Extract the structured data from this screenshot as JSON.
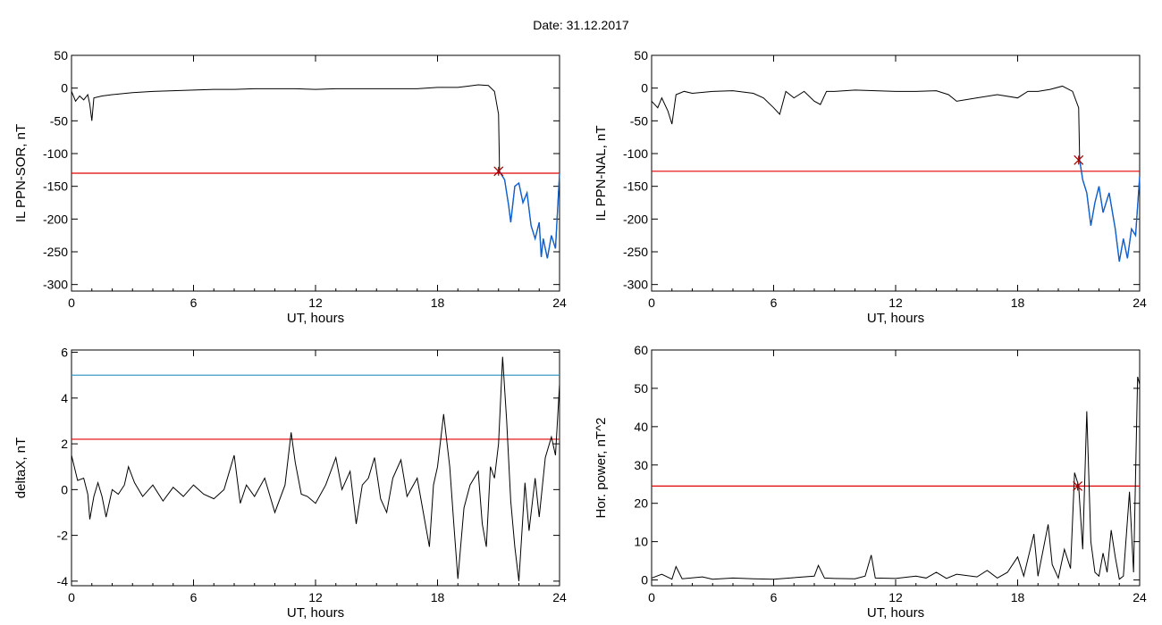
{
  "page": {
    "title": "Date:  31.12.2017"
  },
  "colors": {
    "axis": "#000000",
    "series": "#000000",
    "threshold": "#e00000",
    "highlight": "#1060d0",
    "upper_threshold": "#2a8fbf",
    "marker": "#a00000",
    "green": "#00c000"
  },
  "chart_data": [
    {
      "type": "line",
      "id": "ppn-sor",
      "xlabel": "UT, hours",
      "ylabel": "IL PPN-SOR, nT",
      "xlim": [
        0,
        24
      ],
      "ylim": [
        -310,
        50
      ],
      "xticks": [
        0,
        6,
        12,
        18,
        24
      ],
      "yticks": [
        50,
        0,
        -50,
        -100,
        -150,
        -200,
        -250,
        -300
      ],
      "threshold": -130,
      "marker": {
        "x": 21.0,
        "y": -127
      },
      "highlight_from": 21.05,
      "points": [
        [
          0,
          -5
        ],
        [
          0.2,
          -20
        ],
        [
          0.4,
          -12
        ],
        [
          0.6,
          -18
        ],
        [
          0.8,
          -10
        ],
        [
          0.9,
          -25
        ],
        [
          1.0,
          -50
        ],
        [
          1.1,
          -15
        ],
        [
          1.5,
          -12
        ],
        [
          2,
          -10
        ],
        [
          3,
          -7
        ],
        [
          4,
          -5
        ],
        [
          5,
          -4
        ],
        [
          6,
          -3
        ],
        [
          7,
          -2
        ],
        [
          8,
          -2
        ],
        [
          9,
          -1
        ],
        [
          10,
          -1
        ],
        [
          11,
          -1
        ],
        [
          12,
          -2
        ],
        [
          13,
          -1
        ],
        [
          14,
          -1
        ],
        [
          15,
          -1
        ],
        [
          16,
          -1
        ],
        [
          17,
          -1
        ],
        [
          18,
          1
        ],
        [
          19,
          1
        ],
        [
          19.5,
          3
        ],
        [
          20,
          5
        ],
        [
          20.5,
          4
        ],
        [
          20.8,
          -5
        ],
        [
          21.0,
          -40
        ],
        [
          21.05,
          -127
        ],
        [
          21.1,
          -130
        ],
        [
          21.3,
          -140
        ],
        [
          21.5,
          -180
        ],
        [
          21.6,
          -205
        ],
        [
          21.8,
          -150
        ],
        [
          22.0,
          -145
        ],
        [
          22.2,
          -175
        ],
        [
          22.4,
          -160
        ],
        [
          22.6,
          -210
        ],
        [
          22.8,
          -230
        ],
        [
          23.0,
          -205
        ],
        [
          23.1,
          -258
        ],
        [
          23.2,
          -230
        ],
        [
          23.4,
          -260
        ],
        [
          23.6,
          -225
        ],
        [
          23.8,
          -245
        ],
        [
          24.0,
          -130
        ]
      ]
    },
    {
      "type": "line",
      "id": "ppn-nal",
      "xlabel": "UT, hours",
      "ylabel": "IL PPN-NAL, nT",
      "xlim": [
        0,
        24
      ],
      "ylim": [
        -310,
        50
      ],
      "xticks": [
        0,
        6,
        12,
        18,
        24
      ],
      "yticks": [
        50,
        0,
        -50,
        -100,
        -150,
        -200,
        -250,
        -300
      ],
      "threshold": -127,
      "marker": {
        "x": 21.0,
        "y": -110
      },
      "highlight_from": 21.05,
      "points": [
        [
          0,
          -20
        ],
        [
          0.3,
          -30
        ],
        [
          0.5,
          -15
        ],
        [
          0.8,
          -35
        ],
        [
          1.0,
          -55
        ],
        [
          1.2,
          -10
        ],
        [
          1.6,
          -5
        ],
        [
          2.0,
          -8
        ],
        [
          3,
          -5
        ],
        [
          4,
          -4
        ],
        [
          5,
          -8
        ],
        [
          5.5,
          -15
        ],
        [
          6,
          -30
        ],
        [
          6.3,
          -40
        ],
        [
          6.6,
          -5
        ],
        [
          7,
          -15
        ],
        [
          7.5,
          -5
        ],
        [
          8,
          -20
        ],
        [
          8.3,
          -25
        ],
        [
          8.6,
          -5
        ],
        [
          9,
          -5
        ],
        [
          10,
          -3
        ],
        [
          11,
          -4
        ],
        [
          12,
          -5
        ],
        [
          13,
          -5
        ],
        [
          14,
          -4
        ],
        [
          14.6,
          -10
        ],
        [
          15.0,
          -20
        ],
        [
          16,
          -15
        ],
        [
          17,
          -10
        ],
        [
          18,
          -15
        ],
        [
          18.5,
          -5
        ],
        [
          19,
          -5
        ],
        [
          19.6,
          -2
        ],
        [
          20.2,
          3
        ],
        [
          20.7,
          -5
        ],
        [
          21.0,
          -30
        ],
        [
          21.05,
          -110
        ],
        [
          21.2,
          -140
        ],
        [
          21.4,
          -160
        ],
        [
          21.6,
          -210
        ],
        [
          21.8,
          -175
        ],
        [
          22.0,
          -150
        ],
        [
          22.2,
          -190
        ],
        [
          22.5,
          -160
        ],
        [
          22.8,
          -215
        ],
        [
          23.0,
          -265
        ],
        [
          23.2,
          -230
        ],
        [
          23.4,
          -260
        ],
        [
          23.6,
          -215
        ],
        [
          23.8,
          -225
        ],
        [
          24.0,
          -135
        ]
      ]
    },
    {
      "type": "line",
      "id": "deltax",
      "xlabel": "UT, hours",
      "ylabel": "deltaX, nT",
      "xlim": [
        0,
        24
      ],
      "ylim": [
        -4.2,
        6.1
      ],
      "xticks": [
        0,
        6,
        12,
        18,
        24
      ],
      "yticks": [
        6,
        4,
        2,
        0,
        -2,
        -4
      ],
      "threshold": 2.2,
      "upper_threshold": 5.0,
      "points": [
        [
          0,
          1.5
        ],
        [
          0.3,
          0.4
        ],
        [
          0.6,
          0.5
        ],
        [
          0.8,
          -0.2
        ],
        [
          0.9,
          -1.3
        ],
        [
          1.1,
          -0.3
        ],
        [
          1.3,
          0.3
        ],
        [
          1.5,
          -0.3
        ],
        [
          1.7,
          -1.2
        ],
        [
          2.0,
          0.0
        ],
        [
          2.3,
          -0.2
        ],
        [
          2.6,
          0.2
        ],
        [
          2.8,
          1.0
        ],
        [
          3.1,
          0.3
        ],
        [
          3.5,
          -0.3
        ],
        [
          4,
          0.2
        ],
        [
          4.5,
          -0.5
        ],
        [
          5,
          0.1
        ],
        [
          5.5,
          -0.3
        ],
        [
          6,
          0.2
        ],
        [
          6.5,
          -0.2
        ],
        [
          7,
          -0.4
        ],
        [
          7.5,
          0.0
        ],
        [
          8.0,
          1.5
        ],
        [
          8.3,
          -0.6
        ],
        [
          8.6,
          0.2
        ],
        [
          9,
          -0.3
        ],
        [
          9.5,
          0.5
        ],
        [
          10,
          -1.0
        ],
        [
          10.5,
          0.2
        ],
        [
          10.8,
          2.5
        ],
        [
          11,
          1.2
        ],
        [
          11.3,
          -0.2
        ],
        [
          11.6,
          -0.3
        ],
        [
          12,
          -0.6
        ],
        [
          12.5,
          0.2
        ],
        [
          13.0,
          1.4
        ],
        [
          13.3,
          0.0
        ],
        [
          13.7,
          0.8
        ],
        [
          14.0,
          -1.5
        ],
        [
          14.3,
          0.2
        ],
        [
          14.6,
          0.5
        ],
        [
          14.9,
          1.4
        ],
        [
          15.2,
          -0.4
        ],
        [
          15.5,
          -1.0
        ],
        [
          15.8,
          0.5
        ],
        [
          16.2,
          1.3
        ],
        [
          16.5,
          -0.3
        ],
        [
          17,
          0.5
        ],
        [
          17.3,
          -1.0
        ],
        [
          17.6,
          -2.5
        ],
        [
          17.8,
          0.2
        ],
        [
          18.0,
          1.0
        ],
        [
          18.3,
          3.3
        ],
        [
          18.6,
          1.0
        ],
        [
          18.8,
          -1.5
        ],
        [
          19.0,
          -3.9
        ],
        [
          19.3,
          -0.8
        ],
        [
          19.6,
          0.2
        ],
        [
          20.0,
          0.8
        ],
        [
          20.2,
          -1.5
        ],
        [
          20.4,
          -2.5
        ],
        [
          20.6,
          1.0
        ],
        [
          20.8,
          0.5
        ],
        [
          21.0,
          2.0
        ],
        [
          21.2,
          5.8
        ],
        [
          21.4,
          3.0
        ],
        [
          21.6,
          -0.5
        ],
        [
          21.8,
          -2.5
        ],
        [
          22.0,
          -4.0
        ],
        [
          22.3,
          0.3
        ],
        [
          22.5,
          -1.8
        ],
        [
          22.8,
          0.5
        ],
        [
          23.0,
          -1.2
        ],
        [
          23.3,
          1.4
        ],
        [
          23.6,
          2.3
        ],
        [
          23.8,
          1.5
        ],
        [
          24.0,
          4.6
        ]
      ]
    },
    {
      "type": "line",
      "id": "hor-power",
      "xlabel": "UT, hours",
      "ylabel": "Hor. power, nT^2",
      "xlim": [
        0,
        24
      ],
      "ylim": [
        -1.5,
        60
      ],
      "xticks": [
        0,
        6,
        12,
        18,
        24
      ],
      "yticks": [
        60,
        50,
        40,
        30,
        20,
        10,
        0
      ],
      "threshold": 24.5,
      "marker": {
        "x": 20.95,
        "y": 24.5
      },
      "points": [
        [
          0,
          0.5
        ],
        [
          0.5,
          1.5
        ],
        [
          1.0,
          0.2
        ],
        [
          1.2,
          3.5
        ],
        [
          1.5,
          0.3
        ],
        [
          2.5,
          0.8
        ],
        [
          3,
          0.2
        ],
        [
          4,
          0.5
        ],
        [
          5,
          0.3
        ],
        [
          6,
          0.2
        ],
        [
          7,
          0.6
        ],
        [
          8,
          1.0
        ],
        [
          8.2,
          3.8
        ],
        [
          8.5,
          0.5
        ],
        [
          9,
          0.4
        ],
        [
          10,
          0.3
        ],
        [
          10.5,
          1.0
        ],
        [
          10.8,
          6.5
        ],
        [
          11,
          0.5
        ],
        [
          12,
          0.4
        ],
        [
          13,
          1.0
        ],
        [
          13.5,
          0.5
        ],
        [
          14,
          2.0
        ],
        [
          14.5,
          0.4
        ],
        [
          15,
          1.5
        ],
        [
          16,
          0.8
        ],
        [
          16.5,
          2.5
        ],
        [
          17,
          0.5
        ],
        [
          17.5,
          2.0
        ],
        [
          18,
          6.0
        ],
        [
          18.3,
          1.0
        ],
        [
          18.8,
          12.0
        ],
        [
          19.0,
          1.0
        ],
        [
          19.5,
          14.5
        ],
        [
          19.7,
          4.0
        ],
        [
          20.0,
          0.5
        ],
        [
          20.3,
          8.0
        ],
        [
          20.6,
          3.0
        ],
        [
          20.8,
          28.0
        ],
        [
          21.0,
          24.5
        ],
        [
          21.2,
          8.0
        ],
        [
          21.4,
          44.0
        ],
        [
          21.6,
          10.0
        ],
        [
          21.8,
          2.0
        ],
        [
          22.0,
          1.0
        ],
        [
          22.2,
          7.0
        ],
        [
          22.4,
          2.0
        ],
        [
          22.6,
          13.0
        ],
        [
          22.8,
          6.0
        ],
        [
          23.0,
          0.2
        ],
        [
          23.2,
          1.0
        ],
        [
          23.5,
          23.0
        ],
        [
          23.7,
          2.0
        ],
        [
          23.9,
          53.0
        ],
        [
          24.0,
          51.0
        ]
      ]
    }
  ]
}
